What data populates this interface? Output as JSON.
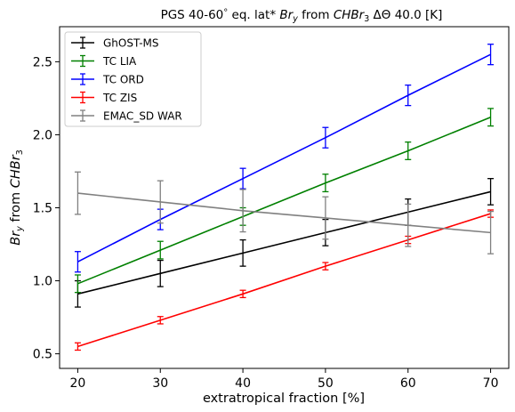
{
  "chart_data": {
    "type": "line",
    "title": {
      "prefix": "PGS 40-60",
      "degree": "°",
      "middle": " eq. lat* ",
      "br": "Br",
      "br_sub": "y",
      "from": " from ",
      "chbr": "CHBr",
      "chbr_sub": "3",
      "suffix": " ΔΘ 40.0 [K]"
    },
    "xlabel": "extratropical fraction [%]",
    "ylabel": {
      "br": "Br",
      "br_sub": "y",
      "from": " from ",
      "chbr": "CHBr",
      "chbr_sub": "3"
    },
    "xlim": [
      17.8,
      72.2
    ],
    "ylim": [
      0.4,
      2.74
    ],
    "x": [
      20,
      30,
      40,
      50,
      60,
      70
    ],
    "xticks": [
      "20",
      "30",
      "40",
      "50",
      "60",
      "70"
    ],
    "yticks": [
      "0.5",
      "1.0",
      "1.5",
      "2.0",
      "2.5"
    ],
    "ytick_values": [
      0.5,
      1.0,
      1.5,
      2.0,
      2.5
    ],
    "grid": false,
    "legend_position": "top-left",
    "series": [
      {
        "name": "GhOST-MS",
        "color": "#000000",
        "values": [
          0.91,
          1.05,
          1.19,
          1.33,
          1.47,
          1.61
        ],
        "errors": [
          0.09,
          0.09,
          0.09,
          0.09,
          0.09,
          0.09
        ]
      },
      {
        "name": "TC LIA",
        "color": "#008000",
        "values": [
          0.98,
          1.21,
          1.44,
          1.67,
          1.89,
          2.12
        ],
        "errors": [
          0.06,
          0.06,
          0.06,
          0.06,
          0.06,
          0.06
        ]
      },
      {
        "name": "TC ORD",
        "color": "#0000ff",
        "values": [
          1.13,
          1.42,
          1.7,
          1.98,
          2.27,
          2.55
        ],
        "errors": [
          0.07,
          0.07,
          0.07,
          0.07,
          0.07,
          0.07
        ]
      },
      {
        "name": "TC ZIS",
        "color": "#ff0000",
        "values": [
          0.55,
          0.73,
          0.91,
          1.1,
          1.28,
          1.46
        ],
        "errors": [
          0.025,
          0.025,
          0.025,
          0.025,
          0.025,
          0.025
        ]
      },
      {
        "name": "EMAC_SD WAR",
        "color": "#808080",
        "values": [
          1.6,
          1.54,
          1.48,
          1.43,
          1.38,
          1.33
        ],
        "errors": [
          0.145,
          0.145,
          0.145,
          0.145,
          0.145,
          0.145
        ]
      }
    ]
  }
}
